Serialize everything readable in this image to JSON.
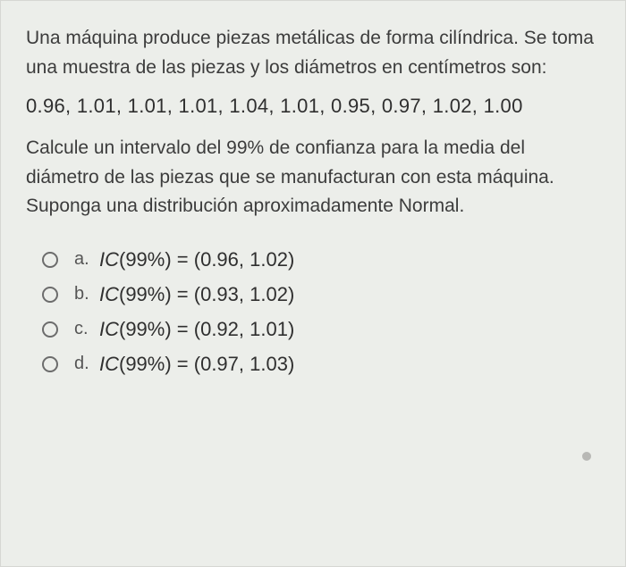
{
  "background_color": "#eceeea",
  "border_color": "#d6d7d3",
  "text_color": "#3c3c3c",
  "formula_color": "#2f2f2f",
  "radio_border_color": "#6c6c6c",
  "question": {
    "part1": "Una máquina produce piezas metálicas de forma cilíndrica. Se toma una muestra de las piezas y los diámetros en centímetros son:",
    "data_values": "0.96, 1.01, 1.01, 1.01, 1.04, 1.01, 0.95, 0.97, 1.02, 1.00",
    "part2_before_pct": "Calcule un intervalo del ",
    "pct": "99%",
    "part2_after_pct": " de confianza  para la media del diámetro de las piezas que se manufacturan con esta máquina. Suponga una distribución aproximadamente Normal."
  },
  "options": [
    {
      "letter": "a.",
      "formula": "IC(99%) = (0.96, 1.02)"
    },
    {
      "letter": "b.",
      "formula": "IC(99%) = (0.93, 1.02)"
    },
    {
      "letter": "c.",
      "formula": "IC(99%) = (0.92, 1.01)"
    },
    {
      "letter": "d.",
      "formula": "IC(99%) = (0.97, 1.03)"
    }
  ]
}
